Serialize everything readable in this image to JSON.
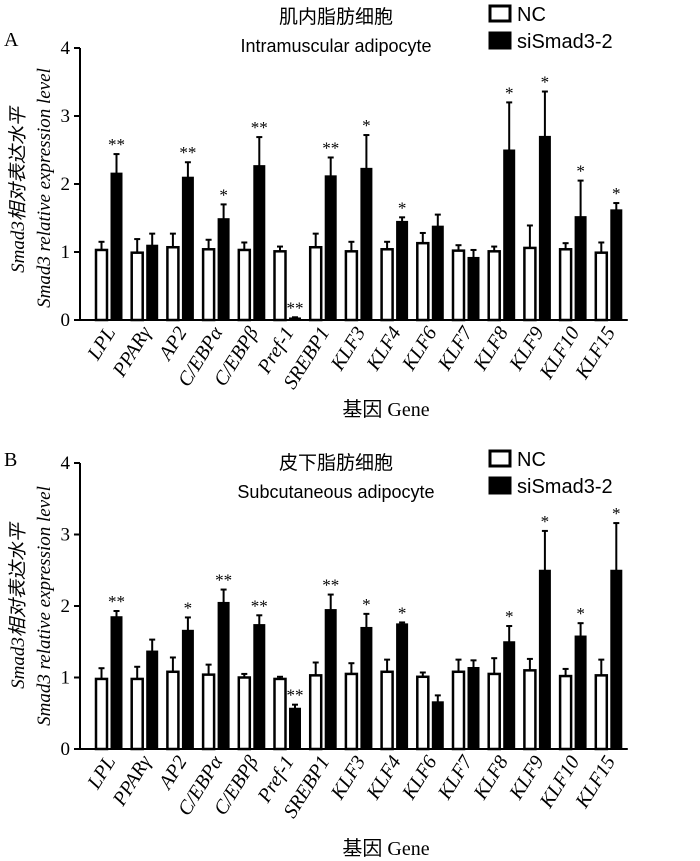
{
  "chart_data": [
    {
      "type": "bar",
      "panel_label": "A",
      "title_cn": "肌内脂肪细胞",
      "title_en": "Intramuscular adipocyte",
      "ylabel_cn": "Smad3相对表达水平",
      "ylabel_en": "Smad3 relative expression level",
      "xlabel": "基因 Gene",
      "ylim": [
        0,
        4
      ],
      "yticks": [
        "0",
        "1",
        "2",
        "3",
        "4"
      ],
      "categories": [
        "LPL",
        "PPARγ",
        "AP2",
        "C/EBPα",
        "C/EBPβ",
        "Pref-1",
        "SREBP1",
        "KLF3",
        "KLF4",
        "KLF6",
        "KLF7",
        "KLF8",
        "KLF9",
        "KLF10",
        "KLF15"
      ],
      "series": [
        {
          "name": "NC",
          "color": "#ffffff",
          "values": [
            1.03,
            0.99,
            1.07,
            1.04,
            1.03,
            1.01,
            1.07,
            1.01,
            1.04,
            1.13,
            1.02,
            1.01,
            1.06,
            1.04,
            0.99
          ],
          "errors": [
            0.12,
            0.2,
            0.2,
            0.14,
            0.11,
            0.07,
            0.2,
            0.14,
            0.11,
            0.15,
            0.08,
            0.07,
            0.33,
            0.09,
            0.15
          ]
        },
        {
          "name": "siSmad3-2",
          "color": "#000000",
          "values": [
            2.16,
            1.1,
            2.1,
            1.49,
            2.27,
            0.03,
            2.12,
            2.23,
            1.45,
            1.38,
            0.92,
            2.5,
            2.7,
            1.52,
            1.62
          ]
        },
        {
          "name": "siSmad3-2 error",
          "color": "#000000",
          "values": [
            0.28,
            0.17,
            0.22,
            0.21,
            0.42,
            0.01,
            0.27,
            0.49,
            0.06,
            0.17,
            0.11,
            0.7,
            0.66,
            0.53,
            0.1
          ]
        }
      ],
      "significance": [
        "**",
        "",
        "**",
        "*",
        "**",
        "**",
        "**",
        "*",
        "*",
        "",
        "",
        "*",
        "*",
        "*",
        "*"
      ]
    },
    {
      "type": "bar",
      "panel_label": "B",
      "title_cn": "皮下脂肪细胞",
      "title_en": "Subcutaneous adipocyte",
      "ylabel_cn": "Smad3相对表达水平",
      "ylabel_en": "Smad3 relative expression level",
      "xlabel": "基因 Gene",
      "ylim": [
        0,
        4
      ],
      "yticks": [
        "0",
        "1",
        "2",
        "3",
        "4"
      ],
      "categories": [
        "LPL",
        "PPARγ",
        "AP2",
        "C/EBPα",
        "C/EBPβ",
        "Pref-1",
        "SREBP1",
        "KLF3",
        "KLF4",
        "KLF6",
        "KLF7",
        "KLF8",
        "KLF9",
        "KLF10",
        "KLF15"
      ],
      "series": [
        {
          "name": "NC",
          "color": "#ffffff",
          "values": [
            0.98,
            0.98,
            1.08,
            1.04,
            1.0,
            0.98,
            1.03,
            1.05,
            1.08,
            1.01,
            1.08,
            1.05,
            1.1,
            1.02,
            1.03
          ],
          "errors": [
            0.15,
            0.17,
            0.2,
            0.14,
            0.05,
            0.03,
            0.18,
            0.15,
            0.17,
            0.06,
            0.17,
            0.22,
            0.16,
            0.1,
            0.22
          ]
        },
        {
          "name": "siSmad3-2",
          "color": "#000000",
          "values": [
            1.85,
            1.37,
            1.66,
            2.05,
            1.74,
            0.57,
            1.95,
            1.7,
            1.75,
            0.66,
            1.14,
            1.5,
            2.5,
            1.58,
            2.5
          ]
        },
        {
          "name": "siSmad3-2 error",
          "color": "#000000",
          "values": [
            0.08,
            0.16,
            0.18,
            0.18,
            0.13,
            0.05,
            0.21,
            0.19,
            0.02,
            0.09,
            0.1,
            0.22,
            0.55,
            0.18,
            0.66
          ]
        }
      ],
      "significance": [
        "**",
        "",
        "*",
        "**",
        "**",
        "**",
        "**",
        "*",
        "*",
        "",
        "",
        "*",
        "*",
        "*",
        "*"
      ]
    }
  ]
}
